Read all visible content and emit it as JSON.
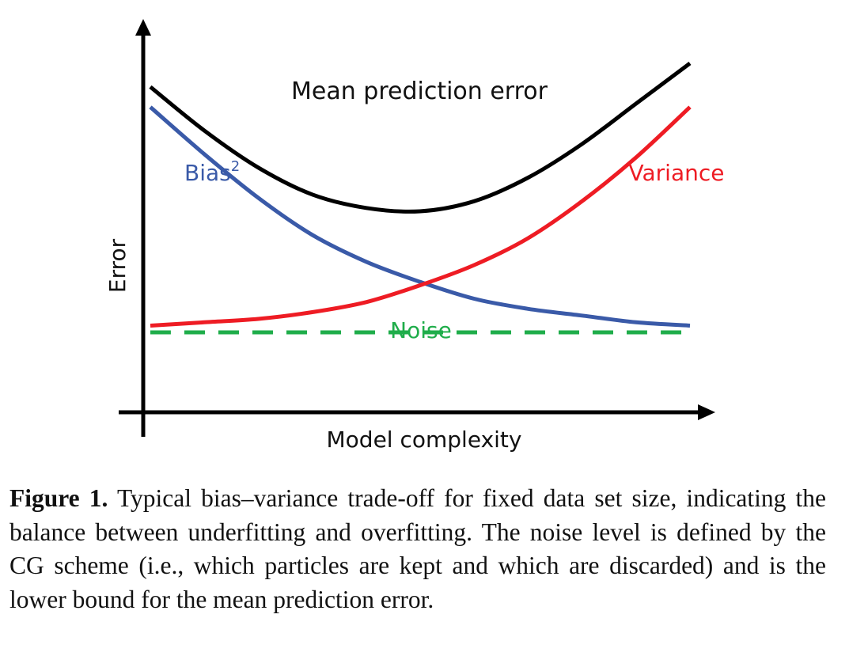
{
  "chart_data": {
    "type": "line",
    "xlabel": "Model complexity",
    "ylabel": "Error",
    "grid": false,
    "legend": "none",
    "x": [
      0,
      0.1,
      0.2,
      0.3,
      0.4,
      0.5,
      0.6,
      0.7,
      0.8,
      0.9,
      1.0
    ],
    "series": [
      {
        "name": "Mean prediction error",
        "color": "#000000",
        "line_style": "solid",
        "values": [
          0.93,
          0.8,
          0.69,
          0.61,
          0.57,
          0.56,
          0.59,
          0.66,
          0.76,
          0.88,
          1.0
        ]
      },
      {
        "name": "Bias",
        "name_superscript": "2",
        "color": "#3a5aa8",
        "line_style": "solid",
        "values": [
          0.87,
          0.73,
          0.6,
          0.49,
          0.41,
          0.35,
          0.3,
          0.27,
          0.25,
          0.23,
          0.22
        ]
      },
      {
        "name": "Variance",
        "color": "#ee1c24",
        "line_style": "solid",
        "values": [
          0.22,
          0.23,
          0.24,
          0.26,
          0.29,
          0.34,
          0.4,
          0.48,
          0.59,
          0.72,
          0.87
        ]
      },
      {
        "name": "Noise",
        "color": "#1fad4a",
        "line_style": "dashed",
        "values": [
          0.2,
          0.2,
          0.2,
          0.2,
          0.2,
          0.2,
          0.2,
          0.2,
          0.2,
          0.2,
          0.2
        ]
      }
    ]
  },
  "caption": {
    "label": "Figure 1.",
    "text": "Typical bias–variance trade-off for fixed data set size, indicating the balance between underfitting and overfitting. The noise level is defined by the CG scheme (i.e., which particles are kept and which are discarded) and is the lower bound for the mean prediction error."
  }
}
